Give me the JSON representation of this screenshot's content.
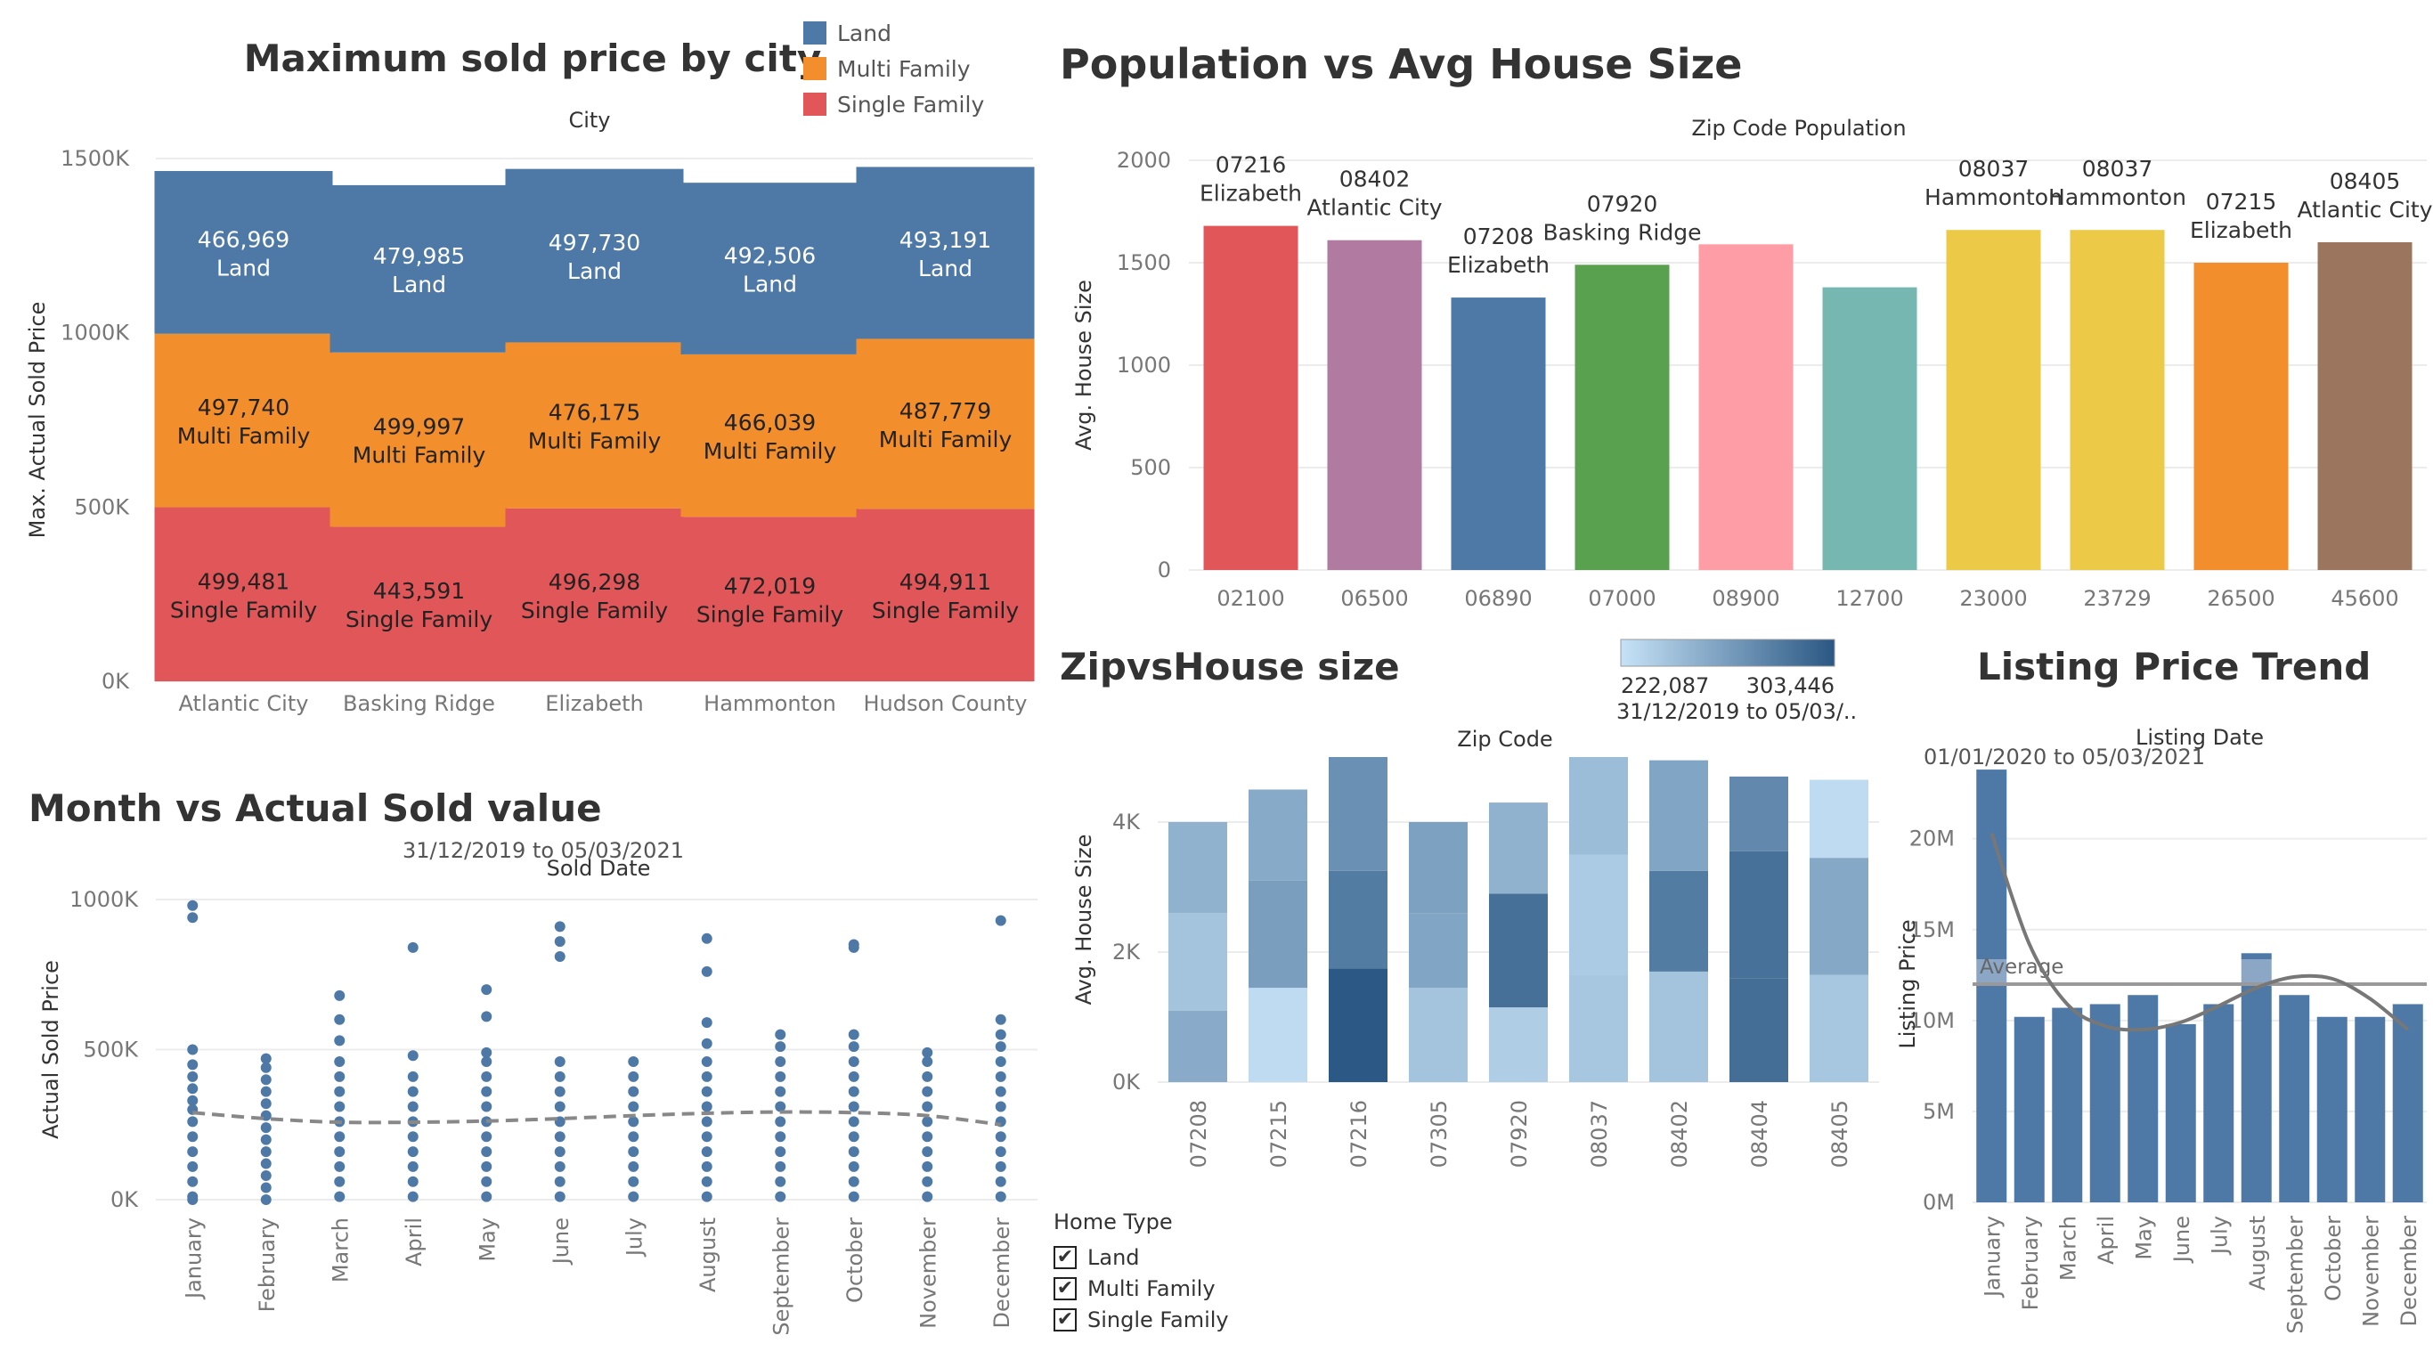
{
  "colors": {
    "land": "#4e79a7",
    "multi_family": "#f28e2b",
    "single_family": "#e15759",
    "trend_line": "#888888",
    "grid": "#ececec"
  },
  "chart_data": [
    {
      "id": "max-sold-price",
      "type": "bar",
      "stacked": true,
      "title": "Maximum sold price by city",
      "column_header": "City",
      "xlabel": "",
      "ylabel": "Max. Actual Sold Price",
      "categories": [
        "Atlantic City",
        "Basking Ridge",
        "Elizabeth",
        "Hammonton",
        "Hudson County"
      ],
      "series": [
        {
          "name": "Single Family",
          "values": [
            499481,
            443591,
            496298,
            472019,
            494911
          ],
          "labels": [
            "499,481",
            "443,591",
            "496,298",
            "472,019",
            "494,911"
          ]
        },
        {
          "name": "Multi Family",
          "values": [
            497740,
            499997,
            476175,
            466039,
            487779
          ],
          "labels": [
            "497,740",
            "499,997",
            "476,175",
            "466,039",
            "487,779"
          ]
        },
        {
          "name": "Land",
          "values": [
            466969,
            479985,
            497730,
            492506,
            493191
          ],
          "labels": [
            "466,969",
            "479,985",
            "497,730",
            "492,506",
            "493,191"
          ]
        }
      ],
      "legend": [
        "Land",
        "Multi Family",
        "Single Family"
      ],
      "legend_position": "top-right",
      "yticks": [
        0,
        500000,
        1000000,
        1500000
      ],
      "ytick_labels": [
        "0K",
        "500K",
        "1000K",
        "1500K"
      ],
      "ylim": [
        0,
        1500000
      ],
      "grid": true
    },
    {
      "id": "population-vs-house-size",
      "type": "bar",
      "title": "Population vs Avg House Size",
      "column_header": "Zip Code Population",
      "xlabel": "",
      "ylabel": "Avg. House Size",
      "categories": [
        "02100",
        "06500",
        "06890",
        "07000",
        "08900",
        "12700",
        "23000",
        "23729",
        "26500",
        "45600"
      ],
      "values": [
        1680,
        1610,
        1330,
        1490,
        1590,
        1380,
        1660,
        1660,
        1500,
        1600
      ],
      "bar_labels": [
        [
          "07216",
          "Elizabeth"
        ],
        [
          "08402",
          "Atlantic City"
        ],
        [
          "07208",
          "Elizabeth"
        ],
        [
          "07920",
          "Basking Ridge"
        ],
        [
          "",
          ""
        ],
        [
          "",
          ""
        ],
        [
          "08037",
          "Hammonton"
        ],
        [
          "08037",
          "Hammonton"
        ],
        [
          "07215",
          "Elizabeth"
        ],
        [
          "08405",
          "Atlantic City"
        ]
      ],
      "bar_colors": [
        "#e15759",
        "#b07aa1",
        "#4e79a7",
        "#59a14f",
        "#ff9da7",
        "#76b7b2",
        "#edc948",
        "#edc948",
        "#f28e2b",
        "#9c755f"
      ],
      "yticks": [
        0,
        500,
        1000,
        1500,
        2000
      ],
      "ytick_labels": [
        "0",
        "500",
        "1000",
        "1500",
        "2000"
      ],
      "ylim": [
        0,
        2000
      ],
      "grid": true
    },
    {
      "id": "zip-vs-house-size",
      "type": "bar",
      "stacked": true,
      "title": "ZipvsHouse size",
      "column_header": "Zip Code",
      "xlabel": "",
      "ylabel": "Avg. House Size",
      "categories": [
        "07208",
        "07215",
        "07216",
        "07305",
        "07920",
        "08037",
        "08402",
        "08404",
        "08405"
      ],
      "segments": [
        [
          1100,
          1500,
          1400
        ],
        [
          1450,
          1650,
          1400
        ],
        [
          1750,
          1500,
          1750
        ],
        [
          1450,
          1150,
          1400
        ],
        [
          1150,
          1750,
          1400
        ],
        [
          1650,
          1850,
          1500
        ],
        [
          1700,
          1550,
          1700
        ],
        [
          1600,
          1950,
          1150
        ],
        [
          1650,
          1800,
          1200
        ]
      ],
      "segment_values": [
        [
          254000,
          240000,
          250000
        ],
        [
          226000,
          262000,
          255000
        ],
        [
          303000,
          282000,
          270000
        ],
        [
          240000,
          258000,
          260000
        ],
        [
          234000,
          289000,
          250000
        ],
        [
          238000,
          236000,
          244000
        ],
        [
          240000,
          282000,
          258000
        ],
        [
          290000,
          288000,
          274000
        ],
        [
          238000,
          256000,
          226000
        ]
      ],
      "color_legend": {
        "min_label": "222,087",
        "max_label": "303,446",
        "min": 222087,
        "max": 303446,
        "min_color": "#c6e2f7",
        "max_color": "#2a5783",
        "date_range": "31/12/2019 to 05/03/.."
      },
      "yticks": [
        0,
        2000,
        4000
      ],
      "ytick_labels": [
        "0K",
        "2K",
        "4K"
      ],
      "ylim": [
        0,
        5000
      ],
      "grid": true
    },
    {
      "id": "month-vs-sold",
      "type": "scatter",
      "title": "Month vs Actual Sold value",
      "subtitle": "31/12/2019 to 05/03/2021",
      "column_header": "Sold Date",
      "xlabel": "",
      "ylabel": "Actual Sold Price",
      "categories": [
        "January",
        "February",
        "March",
        "April",
        "May",
        "June",
        "July",
        "August",
        "September",
        "October",
        "November",
        "December"
      ],
      "points": [
        [
          0,
          10000,
          60000,
          110000,
          160000,
          210000,
          260000,
          300000,
          330000,
          370000,
          410000,
          450000,
          500000,
          940000,
          980000
        ],
        [
          0,
          40000,
          80000,
          120000,
          160000,
          200000,
          240000,
          280000,
          320000,
          360000,
          400000,
          440000,
          470000
        ],
        [
          10000,
          60000,
          110000,
          160000,
          210000,
          260000,
          310000,
          360000,
          410000,
          460000,
          530000,
          600000,
          680000
        ],
        [
          10000,
          60000,
          110000,
          160000,
          210000,
          260000,
          310000,
          360000,
          410000,
          480000,
          840000
        ],
        [
          10000,
          60000,
          110000,
          160000,
          210000,
          260000,
          310000,
          360000,
          410000,
          460000,
          490000,
          610000,
          700000
        ],
        [
          10000,
          60000,
          110000,
          160000,
          210000,
          260000,
          310000,
          360000,
          410000,
          460000,
          810000,
          860000,
          910000
        ],
        [
          10000,
          60000,
          110000,
          160000,
          210000,
          260000,
          310000,
          360000,
          410000,
          460000
        ],
        [
          10000,
          60000,
          110000,
          160000,
          210000,
          260000,
          310000,
          360000,
          410000,
          460000,
          520000,
          590000,
          760000,
          870000
        ],
        [
          10000,
          60000,
          110000,
          160000,
          210000,
          260000,
          310000,
          360000,
          410000,
          460000,
          510000,
          550000
        ],
        [
          10000,
          60000,
          110000,
          160000,
          210000,
          260000,
          310000,
          360000,
          410000,
          460000,
          510000,
          550000,
          840000,
          850000
        ],
        [
          10000,
          60000,
          110000,
          160000,
          210000,
          260000,
          310000,
          360000,
          410000,
          460000,
          490000
        ],
        [
          10000,
          60000,
          110000,
          160000,
          210000,
          260000,
          310000,
          360000,
          410000,
          460000,
          510000,
          550000,
          600000,
          930000
        ]
      ],
      "trend": [
        290000,
        270000,
        258000,
        258000,
        262000,
        270000,
        280000,
        288000,
        292000,
        290000,
        280000,
        250000
      ],
      "yticks": [
        0,
        500000,
        1000000
      ],
      "ytick_labels": [
        "0K",
        "500K",
        "1000K"
      ],
      "ylim": [
        0,
        1000000
      ],
      "grid": true
    },
    {
      "id": "listing-price-trend",
      "type": "bar",
      "title": "Listing Price Trend",
      "subtitle": "01/01/2020 to 05/03/2021",
      "column_header": "Listing Date",
      "xlabel": "",
      "ylabel": "Listing Price",
      "categories": [
        "January",
        "February",
        "March",
        "April",
        "May",
        "June",
        "July",
        "August",
        "September",
        "October",
        "November",
        "December"
      ],
      "values": [
        23800000,
        10200000,
        10700000,
        10900000,
        11400000,
        9800000,
        10900000,
        13700000,
        11400000,
        10200000,
        10200000,
        10900000
      ],
      "average": 12000000,
      "average_label": "Average",
      "trend": [
        20300000,
        14200000,
        10900000,
        9700000,
        9500000,
        9900000,
        10800000,
        11800000,
        12400000,
        12300000,
        11200000,
        9500000
      ],
      "yticks": [
        0,
        5000000,
        10000000,
        15000000,
        20000000
      ],
      "ytick_labels": [
        "0M",
        "5M",
        "10M",
        "15M",
        "20M"
      ],
      "ylim": [
        0,
        24000000
      ],
      "grid": true
    }
  ],
  "filter": {
    "title": "Home Type",
    "check_glyph": "✔",
    "items": [
      {
        "label": "Land",
        "checked": true
      },
      {
        "label": "Multi Family",
        "checked": true
      },
      {
        "label": "Single Family",
        "checked": true
      }
    ]
  }
}
